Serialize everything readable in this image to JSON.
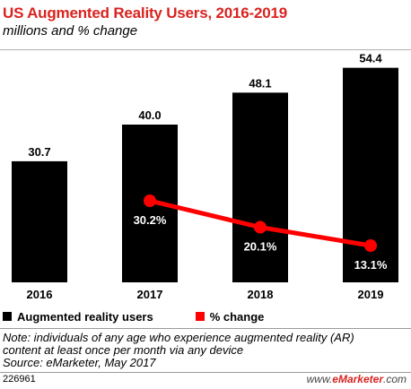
{
  "title": "US Augmented Reality Users, 2016-2019",
  "subtitle": "millions and % change",
  "colors": {
    "bars": "#000000",
    "line": "#ff0000",
    "title": "#d9231f"
  },
  "chart_data": {
    "type": "bar",
    "categories": [
      "2016",
      "2017",
      "2018",
      "2019"
    ],
    "series": [
      {
        "name": "Augmented reality users",
        "type": "bar",
        "values": [
          30.7,
          40.0,
          48.1,
          54.4
        ],
        "labels": [
          "30.7",
          "40.0",
          "48.1",
          "54.4"
        ]
      },
      {
        "name": "% change",
        "type": "line",
        "values": [
          null,
          30.2,
          20.1,
          13.1
        ],
        "labels": [
          "",
          "30.2%",
          "20.1%",
          "13.1%"
        ]
      }
    ],
    "legend_position": "bottom-left",
    "grid": false
  },
  "legend": {
    "bars": "Augmented reality users",
    "line": "% change"
  },
  "note": [
    "Note: individuals of any age who experience augmented reality (AR)",
    "content at least once per month via any device",
    "Source: eMarketer, May 2017"
  ],
  "chart_id": "226961",
  "brand": {
    "prefix": "www.",
    "name": "eMarketer",
    "suffix": ".com"
  }
}
